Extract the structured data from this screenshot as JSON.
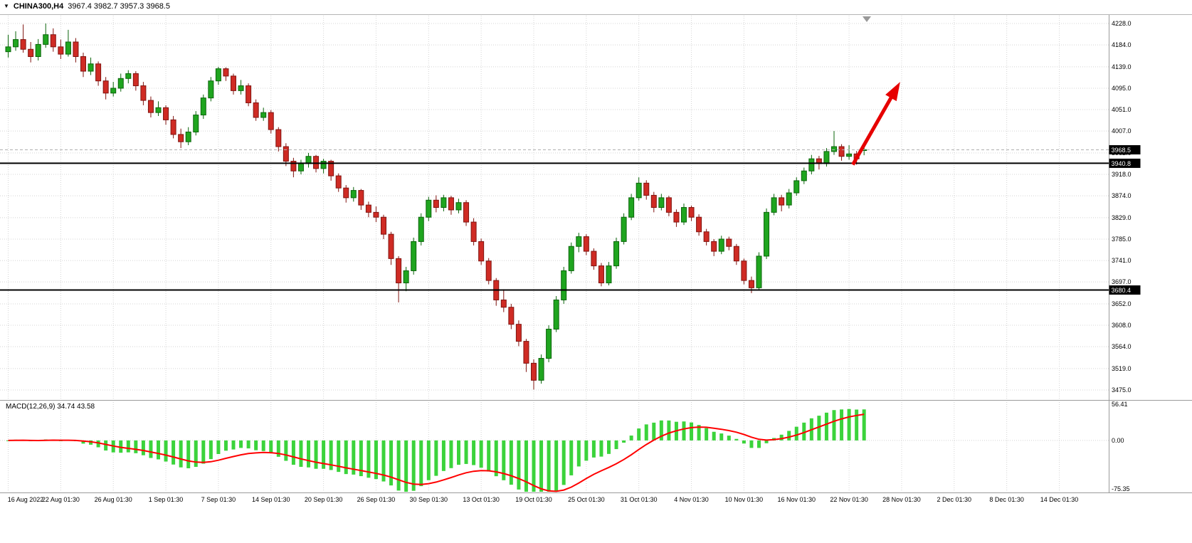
{
  "titlebar": {
    "dropdown_icon": "▼",
    "symbol_label": "CHINA300,H4",
    "ohlc": "3967.4 3982.7 3957.3 3968.5"
  },
  "indicator": {
    "label": "MACD(12,26,9) 34.74 43.58"
  },
  "colors": {
    "background": "#ffffff",
    "grid": "#d4d4d4",
    "separator": "#9a9a9a",
    "frame": "#b5b5b5",
    "axis_text": "#000000",
    "candle_up_fill": "#1fa51f",
    "candle_up_stroke": "#0b650b",
    "candle_down_fill": "#cf2b24",
    "candle_down_stroke": "#801410",
    "macd_bar": "#3bd33b",
    "macd_signal": "#ff0000",
    "hline": "#000000",
    "bid_line": "#b0b0b0",
    "tag_bg": "#000000",
    "tag_text": "#ffffff",
    "arrow": "#e60000",
    "shift_marker": "#999999"
  },
  "chart_data": {
    "type": "candlestick",
    "symbol": "CHINA300",
    "timeframe": "H4",
    "current_bar": {
      "open": 3967.4,
      "high": 3982.7,
      "low": 3957.3,
      "close": 3968.5
    },
    "price_axis": {
      "max": 4228.0,
      "min": 3475.0,
      "ticks": [
        4228.0,
        4184.0,
        4139.0,
        4095.0,
        4051.0,
        4007.0,
        3962.0,
        3918.0,
        3874.0,
        3829.0,
        3785.0,
        3741.0,
        3697.0,
        3652.0,
        3608.0,
        3564.0,
        3519.0,
        3475.0
      ]
    },
    "time_axis": {
      "labels": [
        "16 Aug 2022",
        "22 Aug 01:30",
        "26 Aug 01:30",
        "1 Sep 01:30",
        "7 Sep 01:30",
        "14 Sep 01:30",
        "20 Sep 01:30",
        "26 Sep 01:30",
        "30 Sep 01:30",
        "13 Oct 01:30",
        "19 Oct 01:30",
        "25 Oct 01:30",
        "31 Oct 01:30",
        "4 Nov 01:30",
        "10 Nov 01:30",
        "16 Nov 01:30",
        "22 Nov 01:30",
        "28 Nov 01:30",
        "2 Dec 01:30",
        "8 Dec 01:30",
        "14 Dec 01:30"
      ],
      "slots_per_label": 7,
      "total_slots": 148
    },
    "candles": [
      [
        4170,
        4205,
        4158,
        4180
      ],
      [
        4180,
        4212,
        4172,
        4195
      ],
      [
        4195,
        4226,
        4168,
        4175
      ],
      [
        4175,
        4190,
        4148,
        4160
      ],
      [
        4160,
        4196,
        4152,
        4185
      ],
      [
        4185,
        4228,
        4178,
        4205
      ],
      [
        4205,
        4218,
        4170,
        4180
      ],
      [
        4180,
        4195,
        4155,
        4165
      ],
      [
        4165,
        4215,
        4160,
        4190
      ],
      [
        4190,
        4198,
        4148,
        4160
      ],
      [
        4160,
        4168,
        4118,
        4130
      ],
      [
        4130,
        4158,
        4122,
        4145
      ],
      [
        4145,
        4150,
        4100,
        4110
      ],
      [
        4110,
        4118,
        4072,
        4085
      ],
      [
        4085,
        4108,
        4078,
        4095
      ],
      [
        4095,
        4125,
        4088,
        4115
      ],
      [
        4115,
        4132,
        4105,
        4125
      ],
      [
        4125,
        4130,
        4090,
        4100
      ],
      [
        4100,
        4108,
        4060,
        4070
      ],
      [
        4070,
        4078,
        4035,
        4045
      ],
      [
        4045,
        4068,
        4038,
        4055
      ],
      [
        4055,
        4060,
        4020,
        4030
      ],
      [
        4030,
        4038,
        3992,
        4000
      ],
      [
        4000,
        4012,
        3972,
        3985
      ],
      [
        3985,
        4015,
        3978,
        4005
      ],
      [
        4005,
        4048,
        3998,
        4040
      ],
      [
        4040,
        4082,
        4032,
        4075
      ],
      [
        4075,
        4118,
        4068,
        4110
      ],
      [
        4110,
        4139,
        4102,
        4135
      ],
      [
        4135,
        4138,
        4110,
        4120
      ],
      [
        4120,
        4125,
        4082,
        4090
      ],
      [
        4090,
        4112,
        4082,
        4100
      ],
      [
        4100,
        4105,
        4058,
        4065
      ],
      [
        4065,
        4072,
        4028,
        4035
      ],
      [
        4035,
        4055,
        4028,
        4045
      ],
      [
        4045,
        4050,
        4002,
        4010
      ],
      [
        4010,
        4015,
        3965,
        3975
      ],
      [
        3975,
        3982,
        3935,
        3945
      ],
      [
        3945,
        3952,
        3912,
        3925
      ],
      [
        3925,
        3948,
        3918,
        3940
      ],
      [
        3940,
        3962,
        3932,
        3955
      ],
      [
        3955,
        3958,
        3922,
        3930
      ],
      [
        3930,
        3950,
        3920,
        3945
      ],
      [
        3945,
        3948,
        3905,
        3915
      ],
      [
        3915,
        3920,
        3882,
        3890
      ],
      [
        3890,
        3896,
        3860,
        3870
      ],
      [
        3870,
        3892,
        3862,
        3885
      ],
      [
        3885,
        3888,
        3845,
        3855
      ],
      [
        3855,
        3862,
        3830,
        3840
      ],
      [
        3840,
        3852,
        3820,
        3830
      ],
      [
        3830,
        3835,
        3785,
        3795
      ],
      [
        3795,
        3800,
        3732,
        3745
      ],
      [
        3745,
        3750,
        3655,
        3695
      ],
      [
        3695,
        3728,
        3678,
        3720
      ],
      [
        3720,
        3788,
        3712,
        3780
      ],
      [
        3780,
        3838,
        3772,
        3830
      ],
      [
        3830,
        3872,
        3822,
        3865
      ],
      [
        3865,
        3875,
        3840,
        3850
      ],
      [
        3850,
        3876,
        3842,
        3870
      ],
      [
        3870,
        3874,
        3835,
        3845
      ],
      [
        3845,
        3868,
        3838,
        3860
      ],
      [
        3860,
        3865,
        3812,
        3820
      ],
      [
        3820,
        3828,
        3772,
        3780
      ],
      [
        3780,
        3786,
        3732,
        3740
      ],
      [
        3740,
        3746,
        3692,
        3700
      ],
      [
        3700,
        3705,
        3648,
        3660
      ],
      [
        3660,
        3682,
        3635,
        3645
      ],
      [
        3645,
        3652,
        3600,
        3610
      ],
      [
        3610,
        3618,
        3565,
        3575
      ],
      [
        3575,
        3580,
        3512,
        3530
      ],
      [
        3530,
        3538,
        3476,
        3495
      ],
      [
        3495,
        3548,
        3488,
        3540
      ],
      [
        3540,
        3608,
        3532,
        3600
      ],
      [
        3600,
        3668,
        3594,
        3660
      ],
      [
        3660,
        3728,
        3652,
        3720
      ],
      [
        3720,
        3778,
        3714,
        3770
      ],
      [
        3770,
        3798,
        3758,
        3790
      ],
      [
        3790,
        3795,
        3752,
        3760
      ],
      [
        3760,
        3766,
        3722,
        3730
      ],
      [
        3730,
        3736,
        3688,
        3695
      ],
      [
        3695,
        3738,
        3690,
        3730
      ],
      [
        3730,
        3788,
        3724,
        3780
      ],
      [
        3780,
        3838,
        3774,
        3830
      ],
      [
        3830,
        3878,
        3824,
        3870
      ],
      [
        3870,
        3912,
        3864,
        3900
      ],
      [
        3900,
        3906,
        3866,
        3875
      ],
      [
        3875,
        3882,
        3840,
        3850
      ],
      [
        3850,
        3878,
        3844,
        3870
      ],
      [
        3870,
        3874,
        3832,
        3840
      ],
      [
        3840,
        3846,
        3810,
        3820
      ],
      [
        3820,
        3858,
        3814,
        3850
      ],
      [
        3850,
        3854,
        3822,
        3830
      ],
      [
        3830,
        3836,
        3792,
        3800
      ],
      [
        3800,
        3806,
        3772,
        3780
      ],
      [
        3780,
        3785,
        3750,
        3760
      ],
      [
        3760,
        3792,
        3754,
        3785
      ],
      [
        3785,
        3790,
        3762,
        3770
      ],
      [
        3770,
        3775,
        3732,
        3740
      ],
      [
        3740,
        3745,
        3692,
        3700
      ],
      [
        3700,
        3708,
        3674,
        3685
      ],
      [
        3685,
        3758,
        3680,
        3750
      ],
      [
        3750,
        3848,
        3744,
        3840
      ],
      [
        3840,
        3878,
        3834,
        3870
      ],
      [
        3870,
        3876,
        3842,
        3855
      ],
      [
        3855,
        3888,
        3848,
        3880
      ],
      [
        3880,
        3912,
        3874,
        3905
      ],
      [
        3905,
        3932,
        3898,
        3925
      ],
      [
        3925,
        3958,
        3918,
        3950
      ],
      [
        3950,
        3956,
        3928,
        3940
      ],
      [
        3940,
        3972,
        3934,
        3965
      ],
      [
        3965,
        4007,
        3958,
        3975
      ],
      [
        3975,
        3980,
        3946,
        3955
      ],
      [
        3955,
        3978,
        3948,
        3960
      ],
      [
        3960,
        3966,
        3938,
        3950
      ],
      [
        3967.4,
        3982.7,
        3957.3,
        3968.5
      ]
    ],
    "hlines": [
      {
        "price": 3940.8,
        "label": "3940.8"
      },
      {
        "price": 3680.4,
        "label": "3680.4"
      }
    ],
    "bid": {
      "price": 3968.5,
      "label": "3968.5"
    },
    "macd": {
      "fast": 12,
      "slow": 26,
      "signal": 9,
      "macd_value": 34.74,
      "signal_value": 43.58,
      "axis_ticks": [
        56.41,
        0.0,
        -75.35
      ],
      "range": [
        -80,
        62
      ]
    },
    "annotations": [
      {
        "type": "arrow",
        "from": {
          "slot": 112.5,
          "price": 3938
        },
        "to": {
          "slot": 118.8,
          "price": 4108
        }
      }
    ]
  }
}
